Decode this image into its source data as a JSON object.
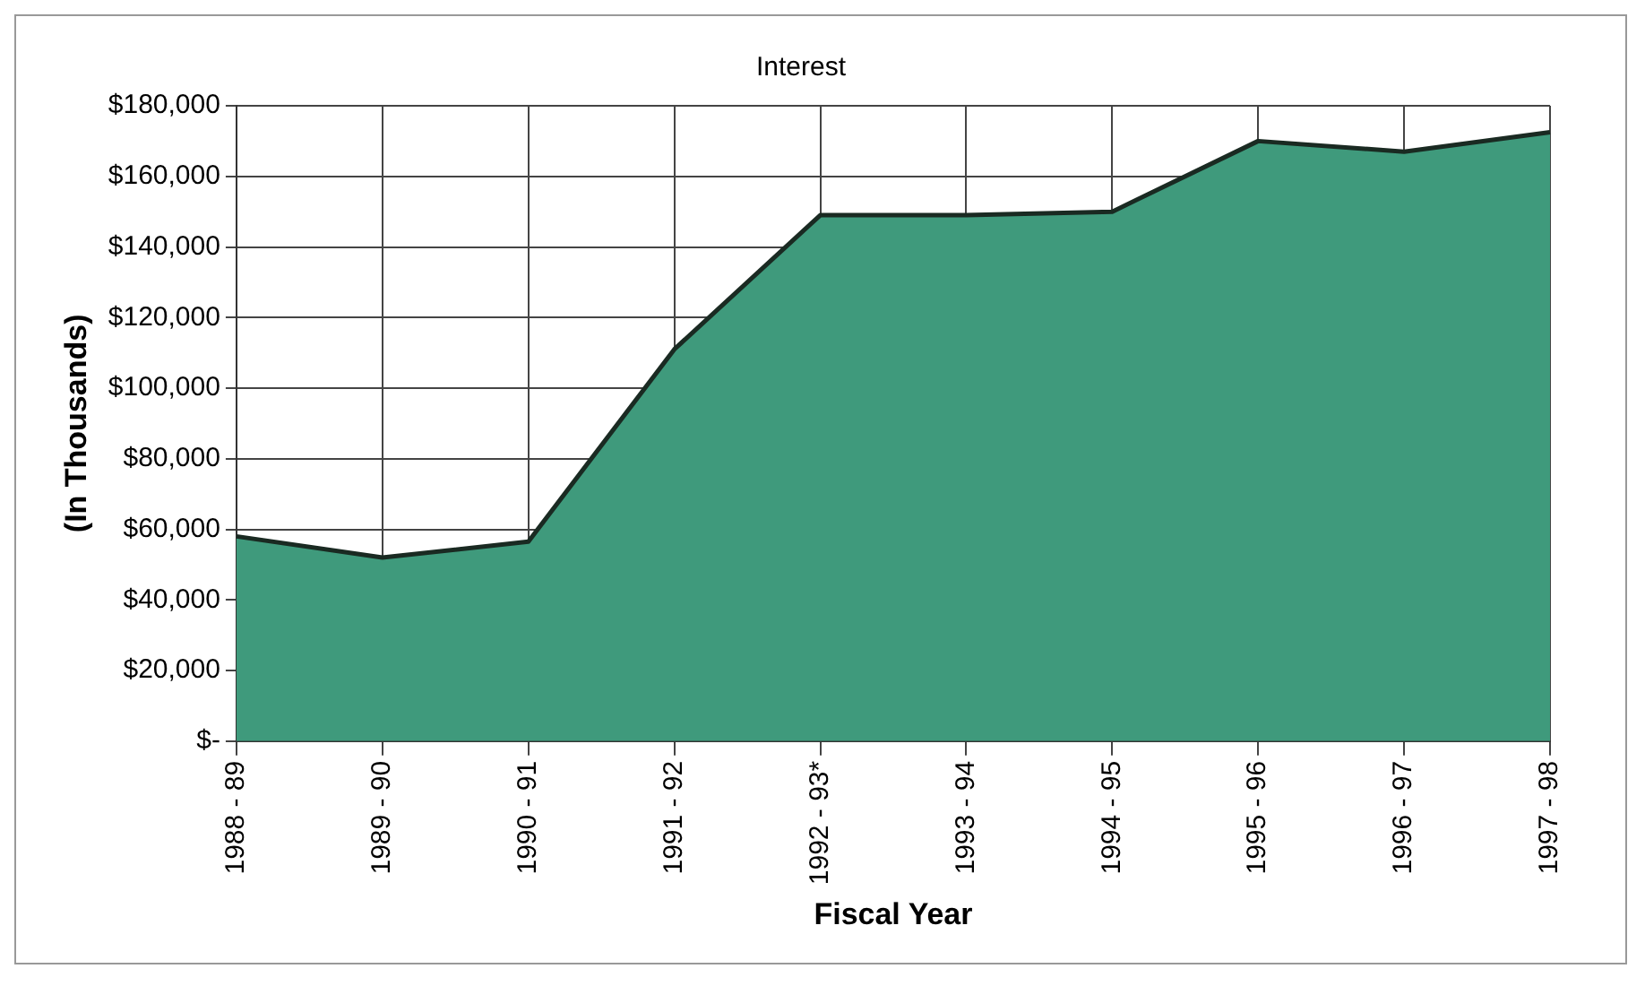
{
  "chart_data": {
    "type": "area",
    "title": "Interest",
    "xlabel": "Fiscal Year",
    "ylabel": "(In Thousands)",
    "categories": [
      "1988 - 89",
      "1989 - 90",
      "1990 - 91",
      "1991 - 92",
      "1992 - 93*",
      "1993 - 94",
      "1994 - 95",
      "1995 - 96",
      "1996 - 97",
      "1997 - 98"
    ],
    "values": [
      58000,
      52000,
      56500,
      111000,
      149000,
      149000,
      150000,
      170000,
      167000,
      172500
    ],
    "color": "#3f9a7c",
    "ylim": [
      0,
      180000
    ],
    "yticks": [
      {
        "value": 0,
        "label": "$-"
      },
      {
        "value": 20000,
        "label": "$20,000"
      },
      {
        "value": 40000,
        "label": "$40,000"
      },
      {
        "value": 60000,
        "label": "$60,000"
      },
      {
        "value": 80000,
        "label": "$80,000"
      },
      {
        "value": 100000,
        "label": "$100,000"
      },
      {
        "value": 120000,
        "label": "$120,000"
      },
      {
        "value": 140000,
        "label": "$140,000"
      },
      {
        "value": 160000,
        "label": "$160,000"
      },
      {
        "value": 180000,
        "label": "$180,000"
      }
    ],
    "grid": true,
    "legend": false
  }
}
